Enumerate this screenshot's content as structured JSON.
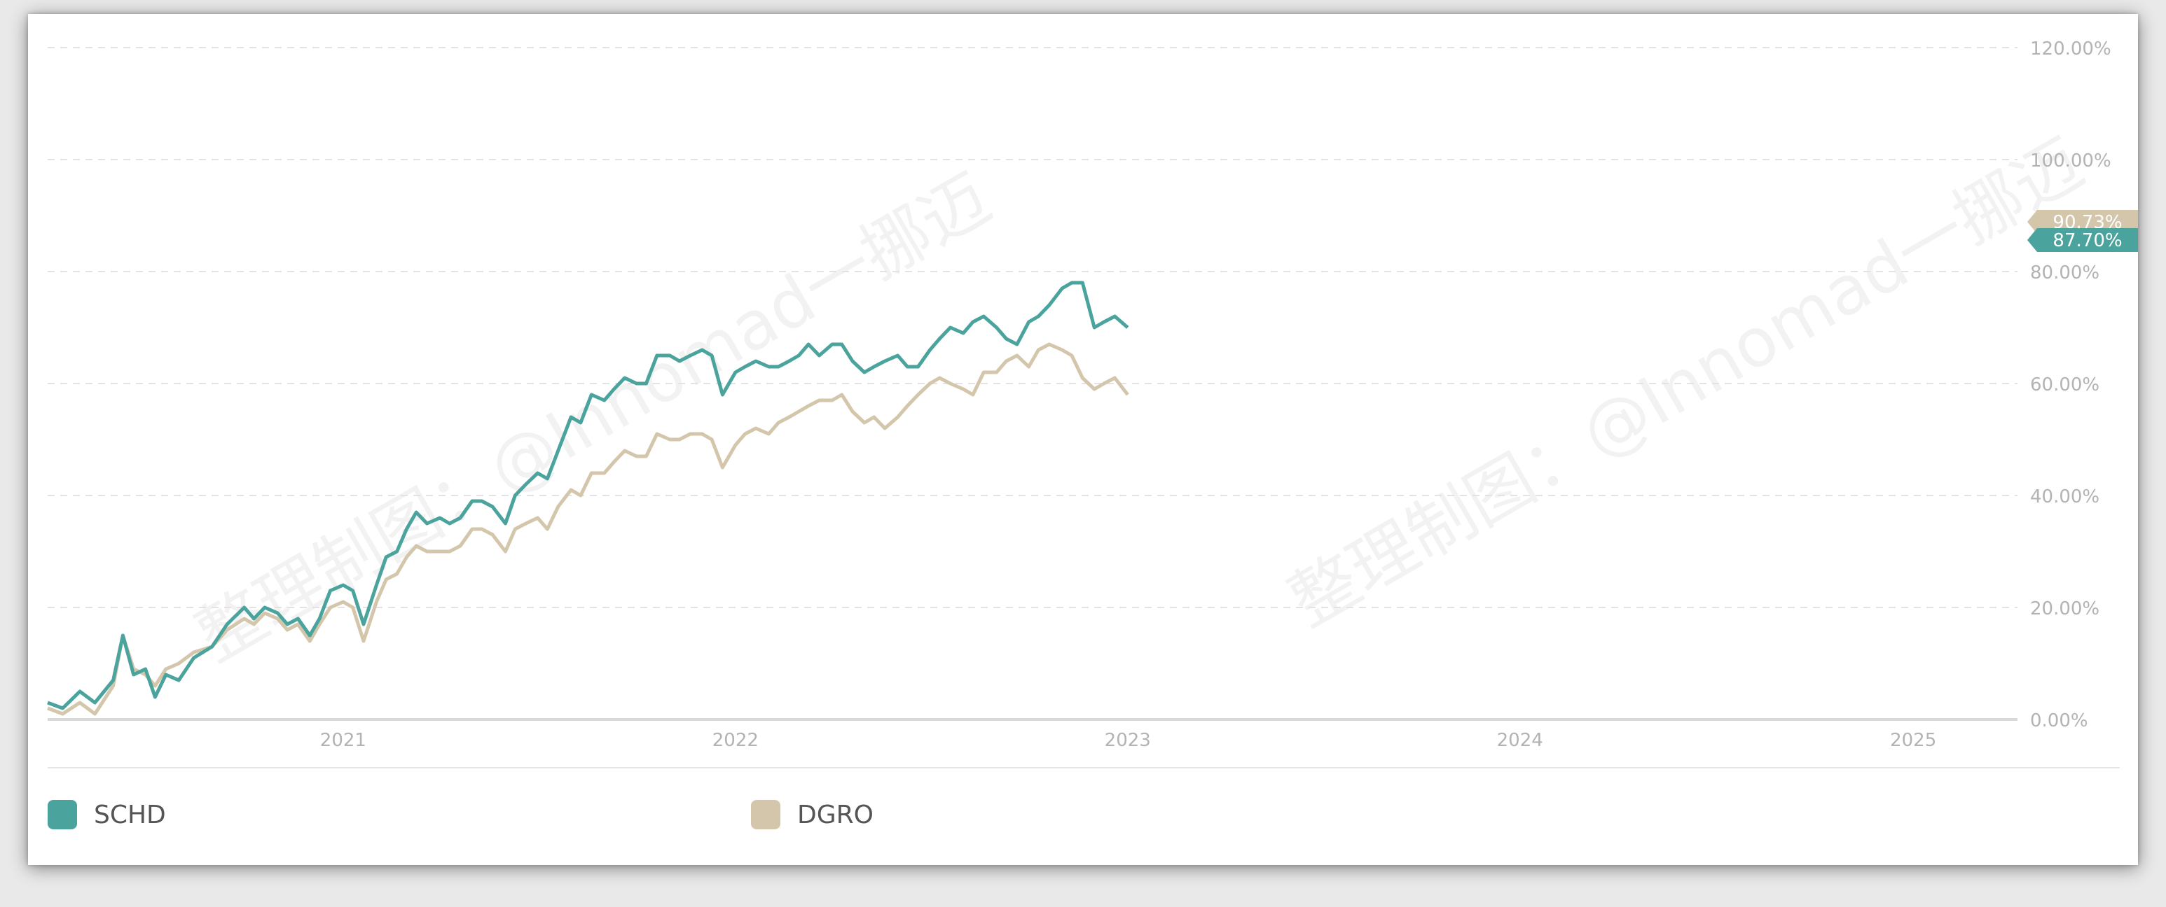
{
  "watermark_text": "整理制图：@Innomad一挪迈",
  "chart_data": {
    "type": "line",
    "x_ticks": [
      "2021",
      "2022",
      "2023",
      "2024",
      "2025"
    ],
    "y_ticks": [
      "0.00%",
      "20.00%",
      "40.00%",
      "60.00%",
      "80.00%",
      "100.00%",
      "120.00%"
    ],
    "ylim": [
      0,
      120
    ],
    "grid": true,
    "legend_position": "bottom-left",
    "series": [
      {
        "name": "SCHD",
        "color": "#4aa39c",
        "end_label": "87.70%",
        "points": [
          [
            "2020-04-01",
            3
          ],
          [
            "2020-04-15",
            2
          ],
          [
            "2020-05-01",
            5
          ],
          [
            "2020-05-15",
            3
          ],
          [
            "2020-06-01",
            7
          ],
          [
            "2020-06-10",
            15
          ],
          [
            "2020-06-20",
            8
          ],
          [
            "2020-07-01",
            9
          ],
          [
            "2020-07-10",
            4
          ],
          [
            "2020-07-20",
            8
          ],
          [
            "2020-08-01",
            7
          ],
          [
            "2020-08-15",
            11
          ],
          [
            "2020-09-01",
            13
          ],
          [
            "2020-09-15",
            17
          ],
          [
            "2020-10-01",
            20
          ],
          [
            "2020-10-10",
            18
          ],
          [
            "2020-10-20",
            20
          ],
          [
            "2020-11-01",
            19
          ],
          [
            "2020-11-10",
            17
          ],
          [
            "2020-11-20",
            18
          ],
          [
            "2020-12-01",
            15
          ],
          [
            "2020-12-10",
            18
          ],
          [
            "2020-12-20",
            23
          ],
          [
            "2021-01-01",
            24
          ],
          [
            "2021-01-10",
            23
          ],
          [
            "2021-01-20",
            17
          ],
          [
            "2021-02-01",
            24
          ],
          [
            "2021-02-10",
            29
          ],
          [
            "2021-02-20",
            30
          ],
          [
            "2021-03-01",
            34
          ],
          [
            "2021-03-10",
            37
          ],
          [
            "2021-03-20",
            35
          ],
          [
            "2021-04-01",
            36
          ],
          [
            "2021-04-10",
            35
          ],
          [
            "2021-04-20",
            36
          ],
          [
            "2021-05-01",
            39
          ],
          [
            "2021-05-10",
            39
          ],
          [
            "2021-05-20",
            38
          ],
          [
            "2021-06-01",
            35
          ],
          [
            "2021-06-10",
            40
          ],
          [
            "2021-06-20",
            42
          ],
          [
            "2021-07-01",
            44
          ],
          [
            "2021-07-10",
            43
          ],
          [
            "2021-07-20",
            48
          ],
          [
            "2021-08-01",
            54
          ],
          [
            "2021-08-10",
            53
          ],
          [
            "2021-08-20",
            58
          ],
          [
            "2021-09-01",
            57
          ],
          [
            "2021-09-10",
            59
          ],
          [
            "2021-09-20",
            61
          ],
          [
            "2021-10-01",
            60
          ],
          [
            "2021-10-10",
            60
          ],
          [
            "2021-10-20",
            65
          ],
          [
            "2021-11-01",
            65
          ],
          [
            "2021-11-10",
            64
          ],
          [
            "2021-11-20",
            65
          ],
          [
            "2021-12-01",
            66
          ],
          [
            "2021-12-10",
            65
          ],
          [
            "2021-12-20",
            58
          ],
          [
            "2022-01-01",
            62
          ],
          [
            "2022-01-10",
            63
          ],
          [
            "2022-01-20",
            64
          ],
          [
            "2022-02-01",
            63
          ],
          [
            "2022-02-10",
            63
          ],
          [
            "2022-02-20",
            64
          ],
          [
            "2022-03-01",
            65
          ],
          [
            "2022-03-10",
            67
          ],
          [
            "2022-03-20",
            65
          ],
          [
            "2022-04-01",
            67
          ],
          [
            "2022-04-10",
            67
          ],
          [
            "2022-04-20",
            64
          ],
          [
            "2022-05-01",
            62
          ],
          [
            "2022-05-10",
            63
          ],
          [
            "2022-05-20",
            64
          ],
          [
            "2022-06-01",
            65
          ],
          [
            "2022-06-10",
            63
          ],
          [
            "2022-06-20",
            63
          ],
          [
            "2022-07-01",
            66
          ],
          [
            "2022-07-10",
            68
          ],
          [
            "2022-07-20",
            70
          ],
          [
            "2022-08-01",
            69
          ],
          [
            "2022-08-10",
            71
          ],
          [
            "2022-08-20",
            72
          ],
          [
            "2022-09-01",
            70
          ],
          [
            "2022-09-10",
            68
          ],
          [
            "2022-09-20",
            67
          ],
          [
            "2022-10-01",
            71
          ],
          [
            "2022-10-10",
            72
          ],
          [
            "2022-10-20",
            74
          ],
          [
            "2022-11-01",
            77
          ],
          [
            "2022-11-10",
            78
          ],
          [
            "2022-11-20",
            78
          ],
          [
            "2022-12-01",
            70
          ],
          [
            "2022-12-10",
            71
          ],
          [
            "2022-12-20",
            72
          ],
          [
            "2023-01-01",
            70
          ]
        ]
      },
      {
        "name": "DGRO",
        "color": "#d4c6ab",
        "end_label": "90.73%",
        "points": [
          [
            "2020-04-01",
            2
          ],
          [
            "2020-04-15",
            1
          ],
          [
            "2020-05-01",
            3
          ],
          [
            "2020-05-15",
            1
          ],
          [
            "2020-06-01",
            6
          ],
          [
            "2020-06-10",
            15
          ],
          [
            "2020-06-20",
            9
          ],
          [
            "2020-07-01",
            8
          ],
          [
            "2020-07-10",
            6
          ],
          [
            "2020-07-20",
            9
          ],
          [
            "2020-08-01",
            10
          ],
          [
            "2020-08-15",
            12
          ],
          [
            "2020-09-01",
            13
          ],
          [
            "2020-09-15",
            16
          ],
          [
            "2020-10-01",
            18
          ],
          [
            "2020-10-10",
            17
          ],
          [
            "2020-10-20",
            19
          ],
          [
            "2020-11-01",
            18
          ],
          [
            "2020-11-10",
            16
          ],
          [
            "2020-11-20",
            17
          ],
          [
            "2020-12-01",
            14
          ],
          [
            "2020-12-10",
            17
          ],
          [
            "2020-12-20",
            20
          ],
          [
            "2021-01-01",
            21
          ],
          [
            "2021-01-10",
            20
          ],
          [
            "2021-01-20",
            14
          ],
          [
            "2021-02-01",
            21
          ],
          [
            "2021-02-10",
            25
          ],
          [
            "2021-02-20",
            26
          ],
          [
            "2021-03-01",
            29
          ],
          [
            "2021-03-10",
            31
          ],
          [
            "2021-03-20",
            30
          ],
          [
            "2021-04-01",
            30
          ],
          [
            "2021-04-10",
            30
          ],
          [
            "2021-04-20",
            31
          ],
          [
            "2021-05-01",
            34
          ],
          [
            "2021-05-10",
            34
          ],
          [
            "2021-05-20",
            33
          ],
          [
            "2021-06-01",
            30
          ],
          [
            "2021-06-10",
            34
          ],
          [
            "2021-06-20",
            35
          ],
          [
            "2021-07-01",
            36
          ],
          [
            "2021-07-10",
            34
          ],
          [
            "2021-07-20",
            38
          ],
          [
            "2021-08-01",
            41
          ],
          [
            "2021-08-10",
            40
          ],
          [
            "2021-08-20",
            44
          ],
          [
            "2021-09-01",
            44
          ],
          [
            "2021-09-10",
            46
          ],
          [
            "2021-09-20",
            48
          ],
          [
            "2021-10-01",
            47
          ],
          [
            "2021-10-10",
            47
          ],
          [
            "2021-10-20",
            51
          ],
          [
            "2021-11-01",
            50
          ],
          [
            "2021-11-10",
            50
          ],
          [
            "2021-11-20",
            51
          ],
          [
            "2021-12-01",
            51
          ],
          [
            "2021-12-10",
            50
          ],
          [
            "2021-12-20",
            45
          ],
          [
            "2022-01-01",
            49
          ],
          [
            "2022-01-10",
            51
          ],
          [
            "2022-01-20",
            52
          ],
          [
            "2022-02-01",
            51
          ],
          [
            "2022-02-10",
            53
          ],
          [
            "2022-02-20",
            54
          ],
          [
            "2022-03-01",
            55
          ],
          [
            "2022-03-10",
            56
          ],
          [
            "2022-03-20",
            57
          ],
          [
            "2022-04-01",
            57
          ],
          [
            "2022-04-10",
            58
          ],
          [
            "2022-04-20",
            55
          ],
          [
            "2022-05-01",
            53
          ],
          [
            "2022-05-10",
            54
          ],
          [
            "2022-05-20",
            52
          ],
          [
            "2022-06-01",
            54
          ],
          [
            "2022-06-10",
            56
          ],
          [
            "2022-06-20",
            58
          ],
          [
            "2022-07-01",
            60
          ],
          [
            "2022-07-10",
            61
          ],
          [
            "2022-07-20",
            60
          ],
          [
            "2022-08-01",
            59
          ],
          [
            "2022-08-10",
            58
          ],
          [
            "2022-08-20",
            62
          ],
          [
            "2022-09-01",
            62
          ],
          [
            "2022-09-10",
            64
          ],
          [
            "2022-09-20",
            65
          ],
          [
            "2022-10-01",
            63
          ],
          [
            "2022-10-10",
            66
          ],
          [
            "2022-10-20",
            67
          ],
          [
            "2022-11-01",
            66
          ],
          [
            "2022-11-10",
            65
          ],
          [
            "2022-11-20",
            61
          ],
          [
            "2022-12-01",
            59
          ],
          [
            "2022-12-10",
            60
          ],
          [
            "2022-12-20",
            61
          ],
          [
            "2023-01-01",
            58
          ]
        ]
      }
    ]
  }
}
